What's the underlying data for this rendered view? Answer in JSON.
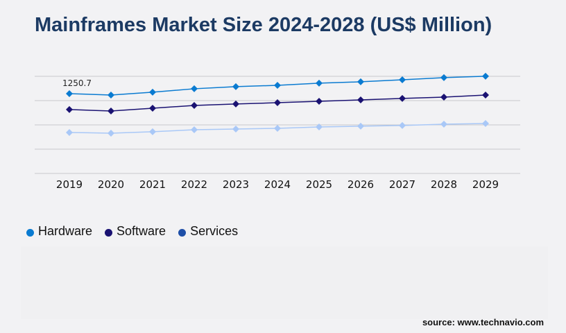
{
  "title": "Mainframes Market Size 2024-2028 (US$ Million)",
  "source": "source: www.technavio.com",
  "chart_data": {
    "type": "line",
    "title": "Mainframes Market Size 2024-2028 (US$ Million)",
    "x": [
      "2019",
      "2020",
      "2021",
      "2022",
      "2023",
      "2024",
      "2025",
      "2026",
      "2027",
      "2028",
      "2029"
    ],
    "ylim": [
      0,
      1522
    ],
    "grid": true,
    "legend_position": "bottom-left",
    "series": [
      {
        "name": "Hardware",
        "color": "#0a7bd1",
        "legend_color": "#0a7bd1",
        "values": [
          1250.7,
          1229,
          1273,
          1327,
          1360,
          1381,
          1414,
          1436,
          1468,
          1501,
          1523
        ]
      },
      {
        "name": "Software",
        "color": "#1a1272",
        "legend_color": "#1a1272",
        "values": [
          1001,
          979,
          1022,
          1066,
          1088,
          1109,
          1131,
          1153,
          1175,
          1196,
          1229
        ]
      },
      {
        "name": "Services",
        "color": "#a9c8f7",
        "legend_color": "#1e4fa8",
        "values": [
          642,
          631,
          653,
          685,
          696,
          707,
          729,
          740,
          751,
          772,
          783
        ]
      }
    ],
    "annotations": [
      {
        "series": "Hardware",
        "x": "2019",
        "label": "1250.7"
      }
    ]
  }
}
